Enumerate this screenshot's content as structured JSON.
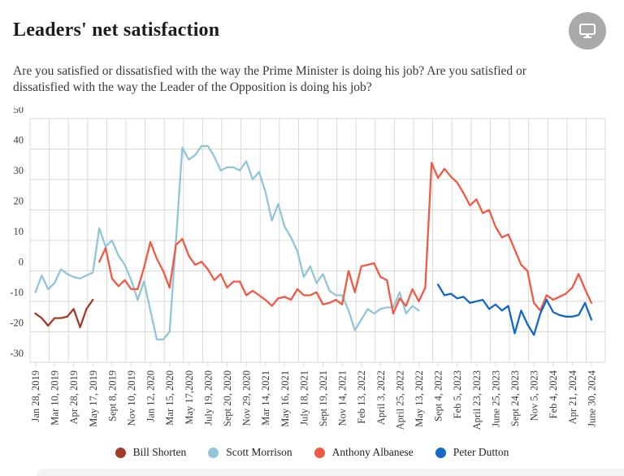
{
  "header": {
    "title": "Leaders' net satisfaction",
    "screen_button_icon": "monitor-icon"
  },
  "chart_data": {
    "type": "line",
    "title": "Leaders' net satisfaction",
    "subtitle": "Are you satisfied or dissatisfied with the way the Prime Minister is doing his job? Are you satisfied or dissatisfied with the way the Leader of the Opposition is doing his job?",
    "ylim": [
      -30,
      50
    ],
    "y_ticks": [
      50,
      40,
      30,
      20,
      10,
      0,
      -10,
      -20,
      -30
    ],
    "grid": "both",
    "legend_position": "bottom",
    "x_tick_labels": [
      "Jan 28, 2019",
      "Mar 10, 2019",
      "Apr 28, 2019",
      "May 17, 2019",
      "Sept 8, 2019",
      "Nov 10, 2019",
      "Jan 12, 2020",
      "Mar 15, 2020",
      "May 17,2020",
      "July 19, 2020",
      "Sept 20, 2020",
      "Nov 29, 2020",
      "Mar 14, 2021",
      "May 16, 2021",
      "July 18, 2021",
      "Sept 19, 2021",
      "Nov 14, 2021",
      "Feb 13, 2022",
      "April 3, 2022",
      "April 25, 2022",
      "May 13, 2022",
      "Sept 4, 2022",
      "Feb 5, 2023",
      "April 23, 2023",
      "June 25, 2023",
      "Sept 24, 2023",
      "Nov 5, 2023",
      "Feb 4, 2024",
      "Apr 21, 2024",
      "June 30, 2024"
    ],
    "points_per_tick": 3,
    "total_points": 88,
    "series": [
      {
        "name": "Bill Shorten",
        "color": "#a23b2a",
        "start_index": 0,
        "values": [
          -14,
          -15.5,
          -18,
          -15.5,
          -15.5,
          -15,
          -12.5,
          -18.5,
          -12.5,
          -9.5
        ]
      },
      {
        "name": "Scott Morrison",
        "color": "#92c5d8",
        "start_index": 0,
        "values": [
          -7,
          -1.5,
          -6,
          -4,
          0.5,
          -1,
          -2,
          -2.5,
          -1.5,
          -0.5,
          14,
          8,
          10,
          5,
          2,
          -3,
          -9.5,
          -3.5,
          -13,
          -22.5,
          -22.5,
          -20,
          10,
          40.5,
          36.5,
          38,
          41,
          41,
          37.5,
          33,
          34,
          34,
          33,
          36,
          30,
          32.5,
          26,
          16.5,
          22,
          14.5,
          11,
          6.5,
          -2,
          1.5,
          -4,
          -1,
          -6.5,
          -8,
          -8,
          -13,
          -19.5,
          -16,
          -12.5,
          -14,
          -12.5,
          -12,
          -12,
          -7,
          -14,
          -11.5,
          -13
        ]
      },
      {
        "name": "Anthony Albanese",
        "color": "#ee5a44",
        "start_index": 10,
        "values": [
          3,
          7.5,
          -2.5,
          -5,
          -3,
          -6,
          -6,
          1,
          9.5,
          4,
          0,
          -5.5,
          8.5,
          10.5,
          5,
          2,
          3,
          0.5,
          -3,
          -1,
          -5.5,
          -3.5,
          -3.5,
          -8,
          -6.5,
          -8,
          -9.5,
          -11.5,
          -9,
          -8.5,
          -9.5,
          -6,
          -8,
          -8,
          -7,
          -11,
          -10.5,
          -9.5,
          -11,
          0,
          -7,
          1.5,
          2,
          2.5,
          -2,
          -3,
          -14,
          -9,
          -11.5,
          -6,
          -10,
          -5.5,
          35.5,
          30.5,
          33.5,
          31,
          29,
          25.5,
          21.5,
          23.5,
          19,
          20,
          14.5,
          11,
          12,
          7,
          2,
          0,
          -10.5,
          -13,
          -8,
          -9.5,
          -8.5,
          -7.5,
          -5.5,
          -1,
          -6,
          -10.5
        ]
      },
      {
        "name": "Peter Dutton",
        "color": "#1467c5",
        "start_index": 63,
        "values": [
          -4.5,
          -8,
          -7.5,
          -9,
          -8.5,
          -10.5,
          -10,
          -9.5,
          -12.5,
          -11,
          -13,
          -11.5,
          -20.5,
          -13,
          -17.5,
          -21,
          -14,
          -9.5,
          -13.5,
          -14.5,
          -15,
          -15,
          -14.5,
          -10.5,
          -16
        ]
      }
    ],
    "colors": {
      "grid": "#d9d9d4",
      "tick_text": "#3d3d3d"
    }
  }
}
